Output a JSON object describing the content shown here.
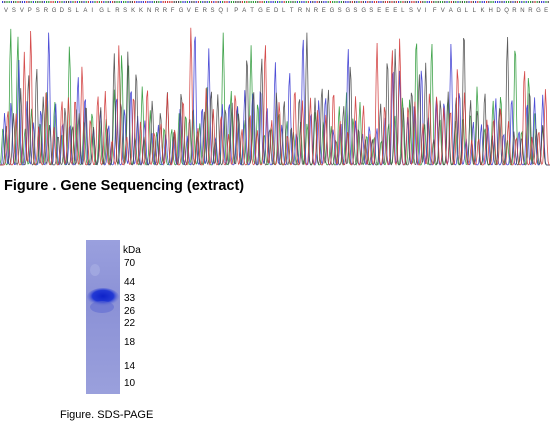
{
  "sequencing": {
    "caption": "Figure . Gene Sequencing (extract)",
    "colors": {
      "A": "#2e9a3a",
      "C": "#3b3bd1",
      "G": "#4a4a4a",
      "T": "#d03a3a"
    },
    "base_calls": "VSVPSRGDSLAIGLRSKKNRRFGVERSQIPATGEDLTRNREGSGSGSEEELSVIFVAGLLKHDQRNRGE"
  },
  "gel": {
    "caption": "Figure. SDS-PAGE",
    "unit_label": "kDa",
    "markers": [
      {
        "label": "70",
        "kda": 70
      },
      {
        "label": "44",
        "kda": 44
      },
      {
        "label": "33",
        "kda": 33
      },
      {
        "label": "26",
        "kda": 26
      },
      {
        "label": "22",
        "kda": 22
      },
      {
        "label": "18",
        "kda": 18
      },
      {
        "label": "14",
        "kda": 14
      },
      {
        "label": "10",
        "kda": 10
      }
    ],
    "band_kda": 33,
    "colors": {
      "lane": "#8a8fd6",
      "band": "#1c2fd2"
    }
  }
}
